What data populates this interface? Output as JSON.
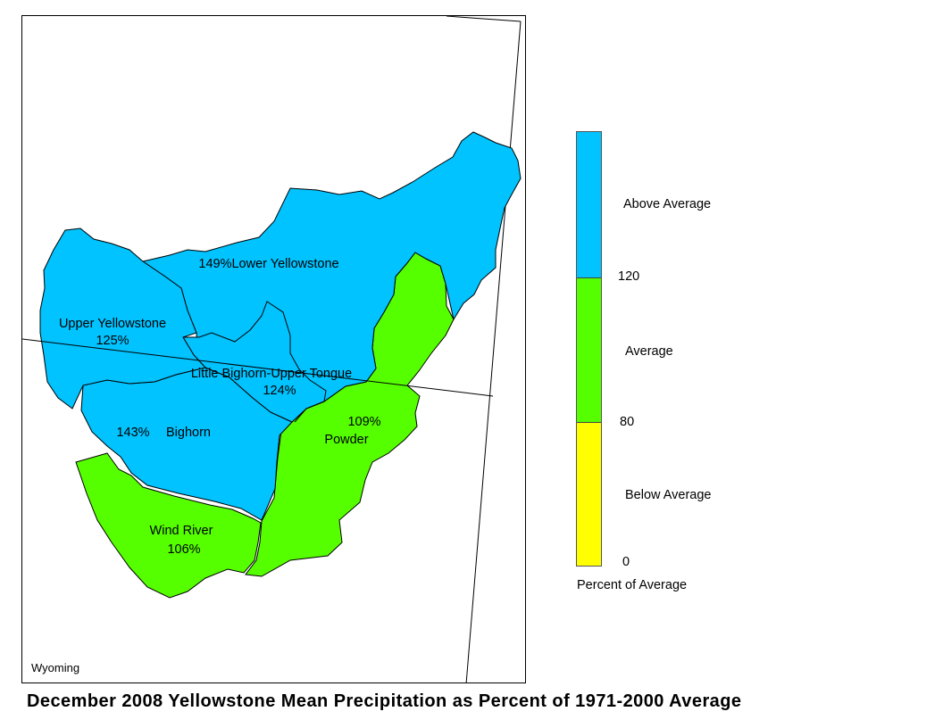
{
  "map": {
    "state_label": "Wyoming",
    "basins": [
      {
        "name": "Lower Yellowstone",
        "label": "149%Lower Yellowstone",
        "percent": 149,
        "category": "above"
      },
      {
        "name": "Upper Yellowstone",
        "label": "Upper Yellowstone",
        "value_label": "125%",
        "percent": 125,
        "category": "above"
      },
      {
        "name": "Little Bighorn-Upper Tongue",
        "label": "Little Bighorn-Upper Tongue",
        "value_label": "124%",
        "percent": 124,
        "category": "above"
      },
      {
        "name": "Bighorn",
        "label": "Bighorn",
        "value_label": "143%",
        "percent": 143,
        "category": "above"
      },
      {
        "name": "Powder",
        "label": "Powder",
        "value_label": "109%",
        "percent": 109,
        "category": "average"
      },
      {
        "name": "Wind River",
        "label": "Wind River",
        "value_label": "106%",
        "percent": 106,
        "category": "average"
      }
    ]
  },
  "legend": {
    "title": "Percent of Average",
    "categories": [
      {
        "label": "Above Average",
        "color": "#00c3ff"
      },
      {
        "label": "Average",
        "color": "#55ff00"
      },
      {
        "label": "Below Average",
        "color": "#ffff00"
      }
    ],
    "ticks": [
      "120",
      "80",
      "0"
    ]
  },
  "title": "December 2008 Yellowstone Mean Precipitation as Percent of 1971-2000 Average"
}
